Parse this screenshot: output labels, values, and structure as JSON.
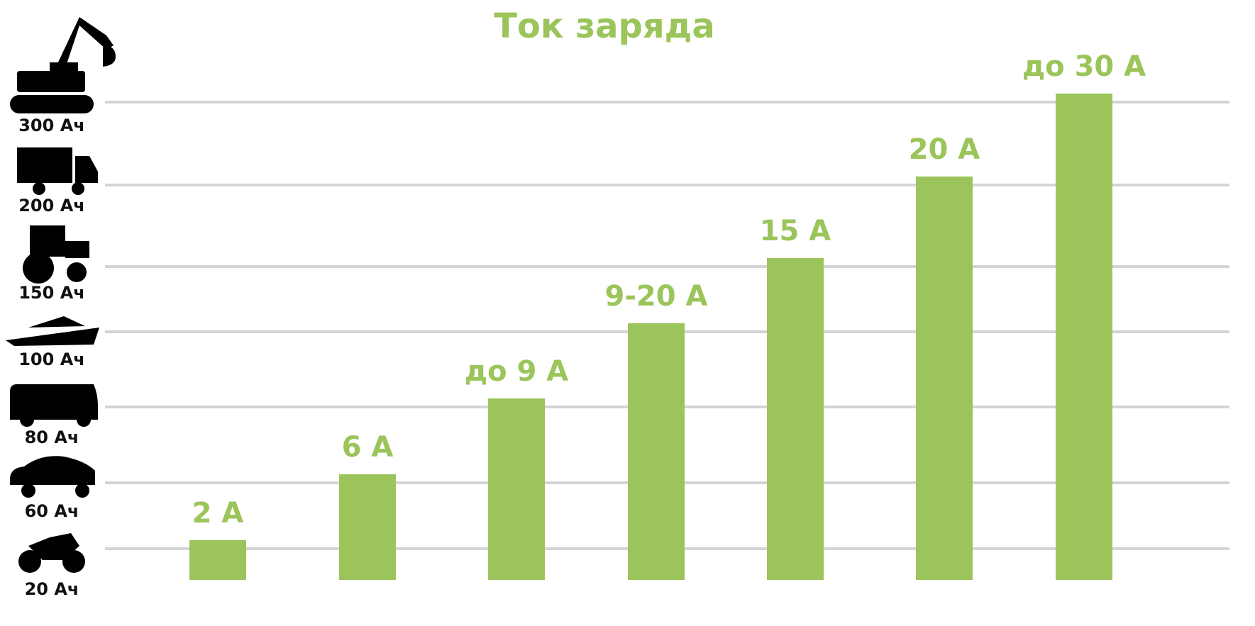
{
  "chart_data": {
    "type": "bar",
    "title": "Ток заряда",
    "categories": [
      "2 А",
      "6 А",
      "до 9 А",
      "9-20 А",
      "15 А",
      "20 А",
      "до 30 А"
    ],
    "values": [
      20,
      60,
      80,
      100,
      150,
      200,
      300
    ],
    "color": "#9bc45a",
    "yticks": [
      {
        "value": 20,
        "label": "20 Ач"
      },
      {
        "value": 60,
        "label": "60 Ач"
      },
      {
        "value": 80,
        "label": "80 Ач"
      },
      {
        "value": 100,
        "label": "100 Ач"
      },
      {
        "value": 150,
        "label": "150 Ач"
      },
      {
        "value": 200,
        "label": "200 Ач"
      },
      {
        "value": 300,
        "label": "300 Ач"
      }
    ],
    "grid": true
  }
}
